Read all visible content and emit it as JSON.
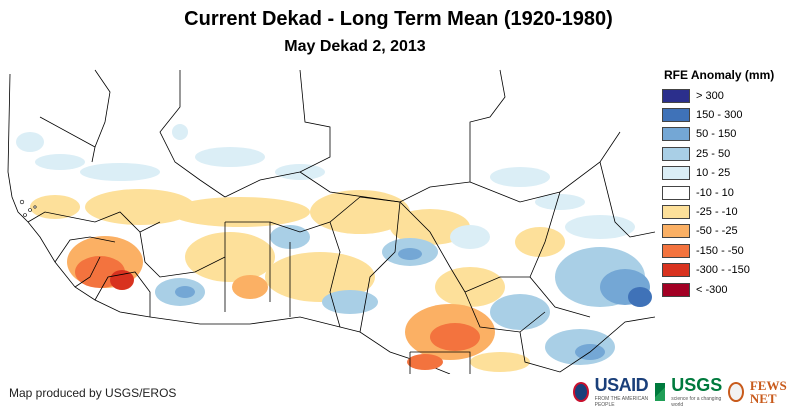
{
  "title": "Current Dekad - Long Term Mean (1920-1980)",
  "subtitle": "May Dekad 2, 2013",
  "legend": {
    "title": "RFE Anomaly (mm)",
    "items": [
      {
        "label": "> 300",
        "color": "#2b2f8c"
      },
      {
        "label": "150 - 300",
        "color": "#3f72b8"
      },
      {
        "label": "50 - 150",
        "color": "#74a7d5"
      },
      {
        "label": "25 - 50",
        "color": "#a9cfe6"
      },
      {
        "label": "10 - 25",
        "color": "#dbeef6"
      },
      {
        "label": "-10 - 10",
        "color": "#ffffff"
      },
      {
        "label": "-25 - -10",
        "color": "#fde09a"
      },
      {
        "label": "-50 - -25",
        "color": "#fbb064"
      },
      {
        "label": "-150 - -50",
        "color": "#f3733e"
      },
      {
        "label": "-300 - -150",
        "color": "#d8321f"
      },
      {
        "label": "< -300",
        "color": "#a20024"
      }
    ]
  },
  "credit": "Map produced by USGS/EROS",
  "logos": {
    "usaid": "USAID",
    "usaid_tagline": "FROM THE AMERICAN PEOPLE",
    "usgs": "USGS",
    "usgs_tagline": "science for a changing world",
    "fews": "FEWS NET"
  }
}
